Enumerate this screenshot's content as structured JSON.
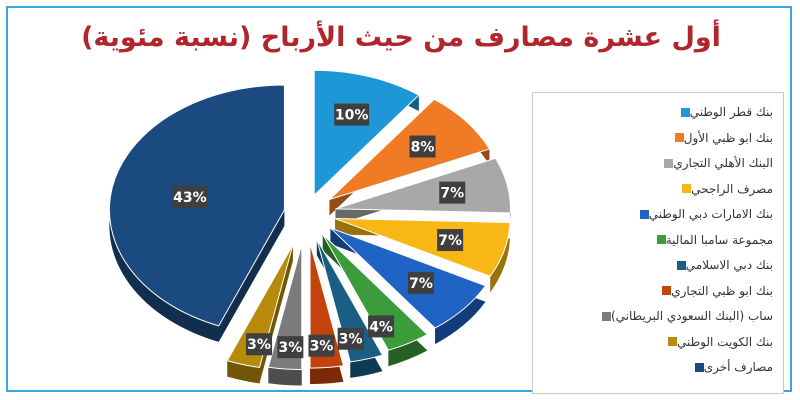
{
  "title": "أول عشرة مصارف من حيث الأرباح (نسبة مئوية)",
  "chart_data": {
    "type": "pie",
    "title": "أول عشرة مصارف من حيث الأرباح (نسبة مئوية)",
    "legend_position": "right",
    "slices": [
      {
        "name": "بنك قطر الوطني",
        "value": 10,
        "label": "10%",
        "color": "#1d97d6"
      },
      {
        "name": "بنك ابو ظبي الأول",
        "value": 8,
        "label": "8%",
        "color": "#f07b24"
      },
      {
        "name": "البنك الأهلي التجاري",
        "value": 7,
        "label": "7%",
        "color": "#a8a8a8"
      },
      {
        "name": "مصرف الراجحي",
        "value": 7,
        "label": "7%",
        "color": "#f7b815"
      },
      {
        "name": "بنك الامارات دبي الوطني",
        "value": 7,
        "label": "7%",
        "color": "#1f63c4"
      },
      {
        "name": "مجموعة سامبا المالية",
        "value": 4,
        "label": "4%",
        "color": "#3c9c3c"
      },
      {
        "name": "بنك دبي الاسلامي",
        "value": 3,
        "label": "3%",
        "color": "#1a5e86"
      },
      {
        "name": "بنك ابو ظبي التجاري",
        "value": 3,
        "label": "3%",
        "color": "#c4430c"
      },
      {
        "name": "ساب (البنك السعودي البريطاني)",
        "value": 3,
        "label": "3%",
        "color": "#7c7c7c"
      },
      {
        "name": "بنك الكويت الوطني",
        "value": 3,
        "label": "3%",
        "color": "#b88a0c"
      },
      {
        "name": "مصارف أخرى",
        "value": 43,
        "label": "43%",
        "color": "#1b4a80"
      }
    ]
  }
}
